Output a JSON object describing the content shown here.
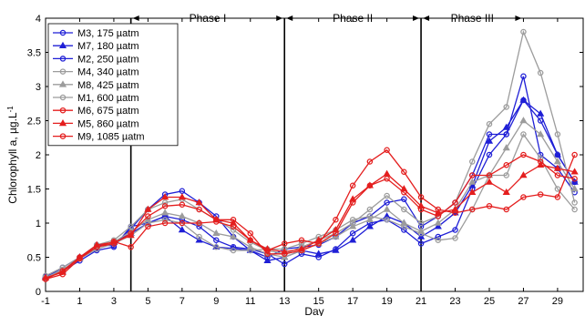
{
  "chart_data": {
    "type": "line",
    "xlabel": "Day",
    "ylabel": "Chlorophyll a, µg.L",
    "ylabel_superscript": "-1",
    "xlim": [
      -1,
      30.5
    ],
    "ylim": [
      0,
      4
    ],
    "xticks": [
      -1,
      1,
      3,
      5,
      7,
      9,
      11,
      13,
      15,
      17,
      19,
      21,
      23,
      25,
      27,
      29
    ],
    "yticks": [
      0,
      0.5,
      1,
      1.5,
      2,
      2.5,
      3,
      3.5,
      4
    ],
    "ytick_labels": [
      "0",
      "0.5",
      "1",
      "1.5",
      "2",
      "2.5",
      "3",
      "3.5",
      "4"
    ],
    "grid": false,
    "legend_position": "top-left",
    "phase_dividers": [
      4,
      13,
      21
    ],
    "phases": [
      {
        "label": "Phase I",
        "from": 4,
        "to": 13
      },
      {
        "label": "Phase II",
        "from": 13,
        "to": 21
      },
      {
        "label": "Phase III",
        "from": 21,
        "to": 27
      }
    ],
    "x": [
      -1,
      0,
      1,
      2,
      3,
      4,
      5,
      6,
      7,
      8,
      9,
      10,
      11,
      12,
      13,
      14,
      15,
      16,
      17,
      18,
      19,
      20,
      21,
      22,
      23,
      24,
      25,
      26,
      27,
      28,
      29,
      30
    ],
    "series": [
      {
        "name": "M3, 175 µatm",
        "color": "#1f1fd6",
        "marker": "circle",
        "values": [
          0.2,
          0.35,
          0.5,
          0.68,
          0.67,
          0.92,
          1.2,
          1.42,
          1.47,
          1.3,
          1.1,
          0.8,
          0.6,
          0.5,
          0.62,
          0.65,
          0.68,
          0.8,
          1.0,
          1.1,
          1.3,
          1.35,
          0.95,
          1.1,
          1.3,
          1.7,
          2.3,
          2.3,
          3.15,
          2.0,
          1.8,
          1.45
        ]
      },
      {
        "name": "M7, 180 µatm",
        "color": "#1f1fd6",
        "marker": "triangle",
        "values": [
          0.22,
          0.3,
          0.5,
          0.65,
          0.72,
          0.85,
          1.0,
          1.1,
          0.9,
          0.75,
          0.65,
          0.63,
          0.6,
          0.45,
          0.5,
          0.6,
          0.55,
          0.6,
          0.75,
          0.95,
          1.1,
          1.0,
          0.8,
          0.95,
          1.15,
          1.55,
          2.2,
          2.4,
          2.8,
          2.6,
          2.0,
          1.6
        ]
      },
      {
        "name": "M2, 250 µatm",
        "color": "#1f1fd6",
        "marker": "circle",
        "values": [
          0.22,
          0.3,
          0.45,
          0.6,
          0.65,
          0.95,
          1.0,
          1.1,
          1.05,
          0.95,
          0.75,
          0.65,
          0.62,
          0.55,
          0.4,
          0.55,
          0.5,
          0.62,
          0.85,
          1.0,
          1.05,
          0.9,
          0.7,
          0.8,
          0.9,
          1.5,
          2.0,
          2.3,
          2.8,
          2.5,
          2.0,
          1.6
        ]
      },
      {
        "name": "M4, 340 µatm",
        "color": "#9c9c9c",
        "marker": "circle",
        "values": [
          0.23,
          0.35,
          0.5,
          0.68,
          0.75,
          0.95,
          1.2,
          1.3,
          1.35,
          1.2,
          1.05,
          0.9,
          0.72,
          0.6,
          0.55,
          0.65,
          0.75,
          0.85,
          1.0,
          1.2,
          1.4,
          1.2,
          1.0,
          1.1,
          1.3,
          1.9,
          2.45,
          2.7,
          3.8,
          3.2,
          2.3,
          1.3
        ]
      },
      {
        "name": "M8, 425 µatm",
        "color": "#9c9c9c",
        "marker": "triangle",
        "values": [
          0.2,
          0.3,
          0.48,
          0.65,
          0.72,
          0.88,
          1.05,
          1.15,
          1.1,
          1.0,
          0.85,
          0.8,
          0.65,
          0.55,
          0.5,
          0.6,
          0.7,
          0.8,
          0.95,
          1.05,
          1.2,
          1.0,
          0.88,
          1.0,
          1.2,
          1.6,
          1.7,
          2.1,
          2.5,
          2.3,
          1.9,
          1.5
        ]
      },
      {
        "name": "M1, 600 µatm",
        "color": "#9c9c9c",
        "marker": "circle",
        "values": [
          0.2,
          0.32,
          0.48,
          0.62,
          0.7,
          0.82,
          1.0,
          1.05,
          1.0,
          0.8,
          0.65,
          0.6,
          0.6,
          0.62,
          0.62,
          0.7,
          0.8,
          0.9,
          1.05,
          1.1,
          1.05,
          0.95,
          0.85,
          0.75,
          0.78,
          1.2,
          1.7,
          1.7,
          2.3,
          1.95,
          1.5,
          1.2
        ]
      },
      {
        "name": "M6, 675 µatm",
        "color": "#e41e1e",
        "marker": "circle",
        "values": [
          0.18,
          0.3,
          0.5,
          0.65,
          0.7,
          0.85,
          1.1,
          1.25,
          1.27,
          1.2,
          1.05,
          1.05,
          0.85,
          0.55,
          0.55,
          0.6,
          0.7,
          0.85,
          1.3,
          1.55,
          1.65,
          1.45,
          1.2,
          1.1,
          1.3,
          1.7,
          1.7,
          1.85,
          2.0,
          1.9,
          1.7,
          1.65
        ]
      },
      {
        "name": "M5, 860 µatm",
        "color": "#e41e1e",
        "marker": "triangle",
        "values": [
          0.2,
          0.28,
          0.5,
          0.68,
          0.72,
          0.82,
          1.2,
          1.38,
          1.38,
          1.3,
          1.05,
          1.0,
          0.75,
          0.62,
          0.58,
          0.62,
          0.75,
          0.9,
          1.35,
          1.55,
          1.72,
          1.5,
          1.25,
          1.15,
          1.2,
          1.45,
          1.6,
          1.45,
          1.7,
          1.85,
          1.8,
          1.75
        ]
      },
      {
        "name": "M9, 1085 µatm",
        "color": "#e41e1e",
        "marker": "circle",
        "values": [
          0.18,
          0.25,
          0.48,
          0.65,
          0.73,
          0.65,
          0.95,
          1.0,
          1.0,
          1.0,
          1.02,
          0.95,
          0.75,
          0.6,
          0.7,
          0.75,
          0.7,
          1.05,
          1.55,
          1.9,
          2.07,
          1.75,
          1.38,
          1.2,
          1.15,
          1.2,
          1.25,
          1.2,
          1.38,
          1.42,
          1.38,
          2.0
        ]
      }
    ]
  }
}
